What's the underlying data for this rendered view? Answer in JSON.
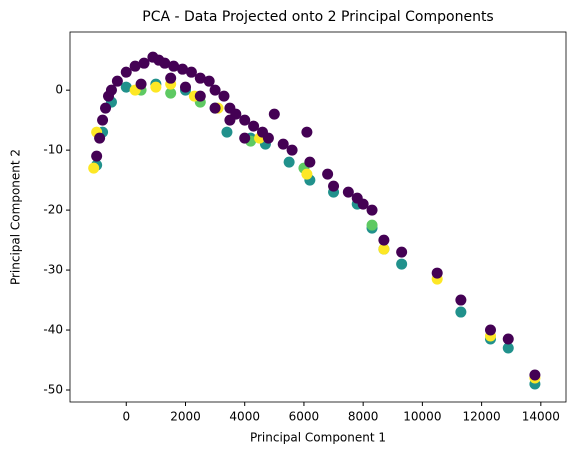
{
  "chart_data": {
    "type": "scatter",
    "title": "PCA - Data Projected onto 2 Principal Components",
    "x_label": "Principal Component 1",
    "y_label": "Principal Component 2",
    "xlim": [
      -1900,
      14850
    ],
    "ylim": [
      -52,
      9.7
    ],
    "xticks": [
      0,
      2000,
      4000,
      6000,
      8000,
      10000,
      12000,
      14000
    ],
    "yticks": [
      -50,
      -40,
      -30,
      -20,
      -10,
      0
    ],
    "series": [
      {
        "color": "#21918c",
        "x": [
          -1000,
          -800,
          -500,
          0,
          1000,
          2000,
          3000,
          3400,
          4200,
          4700,
          5500,
          6200,
          7000,
          7800,
          8300,
          8700,
          9300,
          11300,
          12300,
          12900,
          13800
        ],
        "values": [
          -12.5,
          -7,
          -2,
          0.5,
          1,
          0,
          -3,
          -7,
          -8,
          -9,
          -12,
          -15,
          -17,
          -19,
          -23,
          -26.5,
          -29,
          -37,
          -41.5,
          -43,
          -49
        ]
      },
      {
        "color": "#5ec962",
        "x": [
          500,
          1500,
          2500,
          4200,
          6000,
          8300
        ],
        "values": [
          0,
          -0.5,
          -2,
          -8.5,
          -13,
          -22.5
        ]
      },
      {
        "color": "#fde725",
        "x": [
          -1100,
          -1000,
          300,
          1000,
          1500,
          2300,
          3100,
          4500,
          6100,
          8700,
          10500,
          12300,
          13800
        ],
        "values": [
          -13,
          -7,
          0,
          0.5,
          1,
          -1,
          -3,
          -8,
          -14,
          -26.5,
          -31.5,
          -41,
          -48
        ]
      },
      {
        "color": "#440154",
        "x": [
          -1000,
          -900,
          -800,
          -700,
          -600,
          -500,
          -300,
          0,
          300,
          600,
          900,
          1100,
          1300,
          1600,
          1900,
          2200,
          2500,
          2800,
          3000,
          3300,
          3500,
          3700,
          4000,
          4300,
          4600,
          4800,
          5000,
          5300,
          5600,
          6100,
          6200,
          6800,
          7000,
          7500,
          7800,
          8000,
          8300,
          8700,
          9300,
          10500,
          11300,
          12300,
          12900,
          13800,
          500,
          1500,
          2000,
          3000,
          3500,
          4000,
          2500
        ],
        "values": [
          -11,
          -8,
          -5,
          -3,
          -1,
          0,
          1.5,
          3,
          4,
          4.5,
          5.5,
          5,
          4.5,
          4,
          3.5,
          3,
          2,
          1.5,
          0,
          -1,
          -3,
          -4,
          -5,
          -6,
          -7,
          -8,
          -4,
          -9,
          -10,
          -7,
          -12,
          -14,
          -16,
          -17,
          -18,
          -19,
          -20,
          -25,
          -27,
          -30.5,
          -35,
          -40,
          -41.5,
          -47.5,
          1,
          2,
          0.5,
          -3,
          -5,
          -8,
          -1
        ]
      }
    ]
  }
}
